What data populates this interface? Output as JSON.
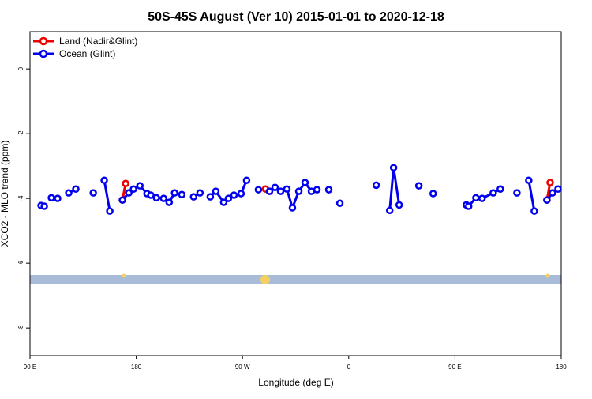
{
  "chart_data": {
    "type": "line",
    "title": "50S-45S August (Ver 10)   2015-01-01 to 2020-12-18",
    "x_label": "Longitude (deg E)",
    "y_label": "XCO2 - MLO trend (ppm)",
    "xlim": [
      90,
      540
    ],
    "ylim": [
      -8.85,
      1.15
    ],
    "xticks": [
      {
        "value": 90,
        "label": "90 E"
      },
      180,
      {
        "value": 270,
        "label": "90 W"
      },
      {
        "value": 360,
        "label": "0"
      },
      {
        "value": 450,
        "label": "90 E"
      },
      {
        "value": 540,
        "label": "180"
      }
    ],
    "yticks": [
      -8,
      -6,
      -4,
      -2,
      0
    ],
    "legend": "top-left",
    "series": [
      {
        "name": "Land (Nadir&Glint)",
        "color": "#ee0000",
        "x": [
          168.3,
          171.0,
          null,
          289.5,
          292.9,
          null,
          527.9,
          530.6
        ],
        "values": [
          -4.05,
          -3.54,
          null,
          -3.71,
          -3.78,
          null,
          -4.05,
          -3.51
        ]
      },
      {
        "name": "Ocean (Glint)",
        "color": "#0000ee",
        "x": [
          99.4,
          102.1,
          null,
          108.1,
          113.4,
          null,
          122.8,
          128.8,
          null,
          143.6,
          null,
          152.9,
          157.6,
          null,
          168.3,
          173.7,
          177.7,
          183.1,
          189.1,
          192.4,
          197.1,
          203.2,
          207.9,
          212.5,
          218.6,
          null,
          228.6,
          234.0,
          null,
          242.7,
          247.4,
          254.1,
          258.1,
          262.8,
          268.8,
          273.5,
          null,
          283.5,
          null,
          292.9,
          297.6,
          302.3,
          307.6,
          312.3,
          317.7,
          323.0,
          328.4,
          333.1,
          null,
          343.1,
          null,
          352.5,
          null,
          383.3,
          null,
          394.7,
          398.0,
          402.7,
          null,
          419.4,
          null,
          431.5,
          null,
          459.6,
          461.6,
          467.7,
          473.0,
          482.4,
          488.4,
          null,
          502.5,
          null,
          512.5,
          517.2,
          null,
          527.9,
          532.6,
          537.3
        ],
        "values": [
          -4.22,
          -4.24,
          null,
          -3.98,
          -4.0,
          null,
          -3.83,
          -3.71,
          null,
          -3.83,
          null,
          -3.44,
          -4.39,
          null,
          -4.05,
          -3.83,
          -3.71,
          -3.61,
          -3.85,
          -3.9,
          -3.98,
          -4.0,
          -4.12,
          -3.83,
          -3.88,
          null,
          -3.95,
          -3.83,
          null,
          -3.95,
          -3.78,
          -4.12,
          -4.0,
          -3.9,
          -3.85,
          -3.44,
          null,
          -3.73,
          null,
          -3.78,
          -3.66,
          -3.78,
          -3.71,
          -4.29,
          -3.78,
          -3.51,
          -3.78,
          -3.73,
          null,
          -3.73,
          null,
          -4.15,
          null,
          -3.59,
          null,
          -4.37,
          -3.05,
          -4.2,
          null,
          -3.61,
          null,
          -3.85,
          null,
          -4.2,
          -4.24,
          -3.98,
          -4.0,
          -3.83,
          -3.71,
          null,
          -3.83,
          null,
          -3.44,
          -4.39,
          null,
          -4.05,
          -3.83,
          -3.71
        ]
      }
    ]
  }
}
